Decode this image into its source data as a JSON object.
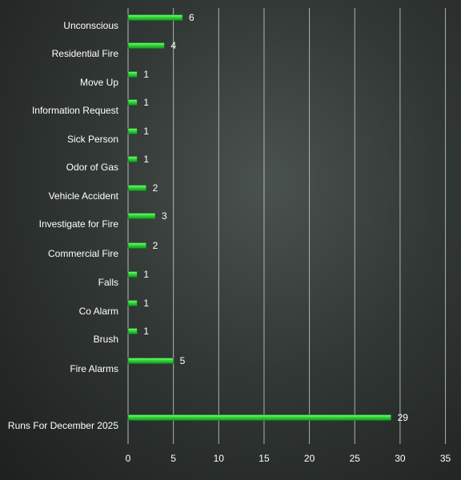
{
  "chart_data": {
    "type": "bar",
    "orientation": "horizontal",
    "title": "",
    "xlabel": "",
    "ylabel": "",
    "xlim": [
      0,
      35
    ],
    "xticks": [
      0,
      5,
      10,
      15,
      20,
      25,
      30,
      35
    ],
    "grid": true,
    "legend": "none",
    "bar_color": "#2ecc40",
    "categories": [
      "Unconscious",
      "Residential Fire",
      "Move Up",
      "Information Request",
      "Sick Person",
      "Odor of Gas",
      "Vehicle Accident",
      "Investigate for Fire",
      "Commercial Fire",
      "Falls",
      "Co Alarm",
      "Brush",
      "Fire Alarms",
      "Runs For December 2025"
    ],
    "values": [
      6,
      4,
      1,
      1,
      1,
      1,
      2,
      3,
      2,
      1,
      1,
      1,
      5,
      29
    ]
  }
}
